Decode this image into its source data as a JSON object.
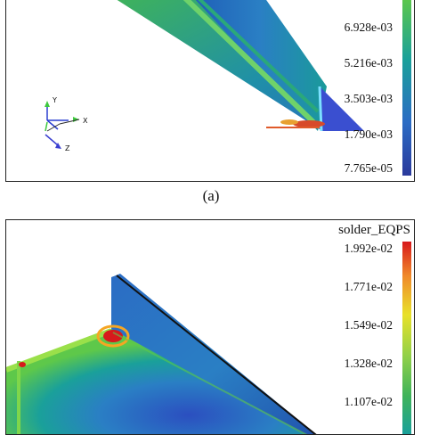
{
  "panel_a": {
    "caption": "(a)",
    "colorbar_ticks": [
      "6.928e-03",
      "5.216e-03",
      "3.503e-03",
      "1.790e-03",
      "7.765e-05"
    ],
    "triad": {
      "y": "Y",
      "x": "X",
      "z": "Z"
    }
  },
  "panel_b": {
    "legend_title": "solder_EQPS",
    "colorbar_ticks": [
      "1.992e-02",
      "1.771e-02",
      "1.549e-02",
      "1.328e-02",
      "1.107e-02"
    ]
  },
  "colors": {
    "scale": [
      "#d7191c",
      "#f5a623",
      "#e8e12a",
      "#5ec84a",
      "#1aa09a",
      "#2b6cc4",
      "#2b3a9c"
    ],
    "frame": "#222222"
  }
}
